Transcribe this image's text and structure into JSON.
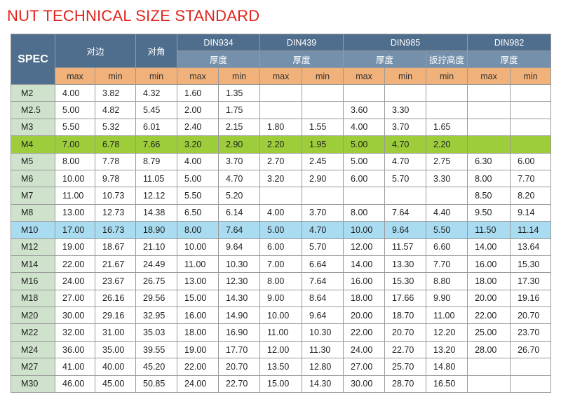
{
  "header": {
    "title": "NUT TECHNICAL SIZE STANDARD"
  },
  "table": {
    "spec": "SPEC",
    "across_flats": "对边",
    "across_corners": "对角",
    "groups": [
      {
        "name": "DIN934",
        "sub": [
          "厚度"
        ]
      },
      {
        "name": "DIN439",
        "sub": [
          "厚度"
        ]
      },
      {
        "name": "DIN985",
        "sub": [
          "厚度",
          "扳拧高度"
        ]
      },
      {
        "name": "DIN982",
        "sub": [
          "厚度"
        ]
      }
    ],
    "subheaders": [
      "max",
      "min",
      "min",
      "max",
      "min",
      "max",
      "min",
      "max",
      "min",
      "min",
      "max",
      "min"
    ],
    "rows": [
      {
        "spec": "M2",
        "cells": [
          "4.00",
          "3.82",
          "4.32",
          "1.60",
          "1.35",
          null,
          null,
          null,
          null,
          null,
          null,
          null
        ]
      },
      {
        "spec": "M2.5",
        "cells": [
          "5.00",
          "4.82",
          "5.45",
          "2.00",
          "1.75",
          null,
          null,
          "3.60",
          "3.30",
          null,
          null,
          null
        ]
      },
      {
        "spec": "M3",
        "cells": [
          "5.50",
          "5.32",
          "6.01",
          "2.40",
          "2.15",
          "1.80",
          "1.55",
          "4.00",
          "3.70",
          "1.65",
          null,
          null
        ]
      },
      {
        "spec": "M4",
        "cells": [
          "7.00",
          "6.78",
          "7.66",
          "3.20",
          "2.90",
          "2.20",
          "1.95",
          "5.00",
          "4.70",
          "2.20",
          null,
          null
        ]
      },
      {
        "spec": "M5",
        "cells": [
          "8.00",
          "7.78",
          "8.79",
          "4.00",
          "3.70",
          "2.70",
          "2.45",
          "5.00",
          "4.70",
          "2.75",
          "6.30",
          "6.00"
        ]
      },
      {
        "spec": "M6",
        "cells": [
          "10.00",
          "9.78",
          "11.05",
          "5.00",
          "4.70",
          "3.20",
          "2.90",
          "6.00",
          "5.70",
          "3.30",
          "8.00",
          "7.70"
        ]
      },
      {
        "spec": "M7",
        "cells": [
          "11.00",
          "10.73",
          "12.12",
          "5.50",
          "5.20",
          null,
          null,
          null,
          null,
          null,
          "8.50",
          "8.20"
        ]
      },
      {
        "spec": "M8",
        "cells": [
          "13.00",
          "12.73",
          "14.38",
          "6.50",
          "6.14",
          "4.00",
          "3.70",
          "8.00",
          "7.64",
          "4.40",
          "9.50",
          "9.14"
        ]
      },
      {
        "spec": "M10",
        "cells": [
          "17.00",
          "16.73",
          "18.90",
          "8.00",
          "7.64",
          "5.00",
          "4.70",
          "10.00",
          "9.64",
          "5.50",
          "11.50",
          "11.14"
        ]
      },
      {
        "spec": "M12",
        "cells": [
          "19.00",
          "18.67",
          "21.10",
          "10.00",
          "9.64",
          "6.00",
          "5.70",
          "12.00",
          "11.57",
          "6.60",
          "14.00",
          "13.64"
        ]
      },
      {
        "spec": "M14",
        "cells": [
          "22.00",
          "21.67",
          "24.49",
          "11.00",
          "10.30",
          "7.00",
          "6.64",
          "14.00",
          "13.30",
          "7.70",
          "16.00",
          "15.30"
        ]
      },
      {
        "spec": "M16",
        "cells": [
          "24.00",
          "23.67",
          "26.75",
          "13.00",
          "12.30",
          "8.00",
          "7.64",
          "16.00",
          "15.30",
          "8.80",
          "18.00",
          "17.30"
        ]
      },
      {
        "spec": "M18",
        "cells": [
          "27.00",
          "26.16",
          "29.56",
          "15.00",
          "14.30",
          "9.00",
          "8.64",
          "18.00",
          "17.66",
          "9.90",
          "20.00",
          "19.16"
        ]
      },
      {
        "spec": "M20",
        "cells": [
          "30.00",
          "29.16",
          "32.95",
          "16.00",
          "14.90",
          "10.00",
          "9.64",
          "20.00",
          "18.70",
          "11.00",
          "22.00",
          "20.70"
        ]
      },
      {
        "spec": "M22",
        "cells": [
          "32.00",
          "31.00",
          "35.03",
          "18.00",
          "16.90",
          "11.00",
          "10.30",
          "22.00",
          "20.70",
          "12.20",
          "25.00",
          "23.70"
        ]
      },
      {
        "spec": "M24",
        "cells": [
          "36.00",
          "35.00",
          "39.55",
          "19.00",
          "17.70",
          "12.00",
          "11.30",
          "24.00",
          "22.70",
          "13.20",
          "28.00",
          "26.70"
        ]
      },
      {
        "spec": "M27",
        "cells": [
          "41.00",
          "40.00",
          "45.20",
          "22.00",
          "20.70",
          "13.50",
          "12.80",
          "27.00",
          "25.70",
          "14.80",
          null,
          null
        ]
      },
      {
        "spec": "M30",
        "cells": [
          "46.00",
          "45.00",
          "50.85",
          "24.00",
          "22.70",
          "15.00",
          "14.30",
          "30.00",
          "28.70",
          "16.50",
          null,
          null
        ]
      }
    ]
  }
}
